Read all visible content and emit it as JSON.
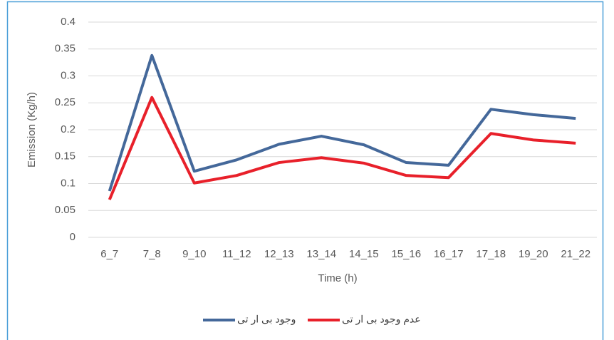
{
  "chart_data": {
    "type": "line",
    "y_label": "Emission (Kg/h)",
    "x_label": "Time (h)",
    "categories": [
      "6_7",
      "7_8",
      "9_10",
      "11_12",
      "12_13",
      "13_14",
      "14_15",
      "15_16",
      "16_17",
      "17_18",
      "19_20",
      "21_22"
    ],
    "series": [
      {
        "name": "وجود بی ار تی",
        "color": "#44689a",
        "values": [
          0.086,
          0.338,
          0.123,
          0.144,
          0.173,
          0.188,
          0.172,
          0.139,
          0.134,
          0.238,
          0.228,
          0.221
        ]
      },
      {
        "name": "عدم وجود بی ار تی",
        "color": "#e8202a",
        "values": [
          0.07,
          0.26,
          0.101,
          0.115,
          0.139,
          0.148,
          0.138,
          0.115,
          0.111,
          0.193,
          0.181,
          0.175
        ]
      }
    ],
    "ylim": [
      0,
      0.4
    ],
    "yticks": [
      0,
      0.05,
      0.1,
      0.15,
      0.2,
      0.25,
      0.3,
      0.35,
      0.4
    ],
    "grid": true,
    "legend": "bottom"
  }
}
